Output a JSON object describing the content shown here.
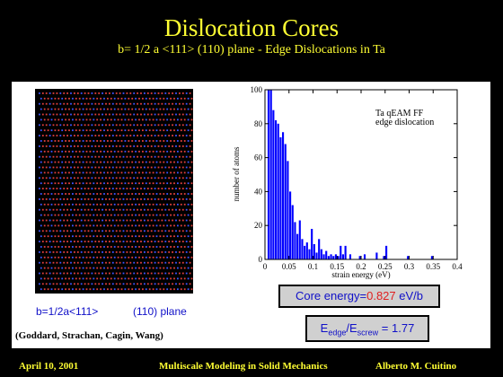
{
  "slide": {
    "title": "Dislocation Cores",
    "subtitle": "b= 1/2 a <111> (110) plane - Edge Dislocations in Ta"
  },
  "left_figure": {
    "caption_left": "b=1/2a<111>",
    "caption_right": "(110) plane",
    "credits": "(Goddard, Strachan, Cagin, Wang)"
  },
  "colors": {
    "accent": "#ffff33",
    "bars": "#0000ff",
    "caption": "#1010c8",
    "value": "#e02020"
  },
  "chart_data": {
    "type": "bar",
    "xlabel": "strain energy (eV)",
    "ylabel": "number of atoms",
    "xlim": [
      0,
      0.4
    ],
    "ylim": [
      0,
      100
    ],
    "x_ticks": [
      "0",
      "0.05",
      "0.1",
      "0.15",
      "0.2",
      "0.25",
      "0.3",
      "0.35",
      "0.4"
    ],
    "y_ticks": [
      "0",
      "20",
      "40",
      "60",
      "80",
      "100"
    ],
    "legend_line1": "Ta qEAM FF",
    "legend_line2": "edge dislocation",
    "x": [
      0.0075,
      0.0125,
      0.0175,
      0.0225,
      0.0275,
      0.0325,
      0.0375,
      0.0425,
      0.0475,
      0.0525,
      0.0575,
      0.0625,
      0.0675,
      0.0725,
      0.0775,
      0.0825,
      0.0875,
      0.0925,
      0.0975,
      0.1025,
      0.1075,
      0.1125,
      0.1175,
      0.1225,
      0.1275,
      0.1325,
      0.1375,
      0.1425,
      0.1475,
      0.1525,
      0.1575,
      0.1625,
      0.1675,
      0.1775,
      0.1975,
      0.2075,
      0.2325,
      0.2475,
      0.2525,
      0.2975,
      0.3475
    ],
    "values": [
      100,
      100,
      88,
      82,
      80,
      72,
      75,
      68,
      58,
      40,
      32,
      22,
      15,
      23,
      12,
      8,
      10,
      6,
      18,
      9,
      4,
      12,
      6,
      3,
      5,
      2,
      3,
      2,
      3,
      2,
      8,
      3,
      8,
      3,
      2,
      3,
      4,
      2,
      8,
      2,
      2
    ]
  },
  "core_energy": {
    "label": "Core energy=",
    "value": "0.827",
    "unit": " eV/b"
  },
  "energy_ratio": {
    "main": "E",
    "sub1": "edge",
    "slash": "/E",
    "sub2": "screw",
    "equals": " = 1.77"
  },
  "footer": {
    "date": "April 10, 2001",
    "course": "Multiscale Modeling in Solid Mechanics",
    "author": "Alberto M. Cuitino"
  }
}
